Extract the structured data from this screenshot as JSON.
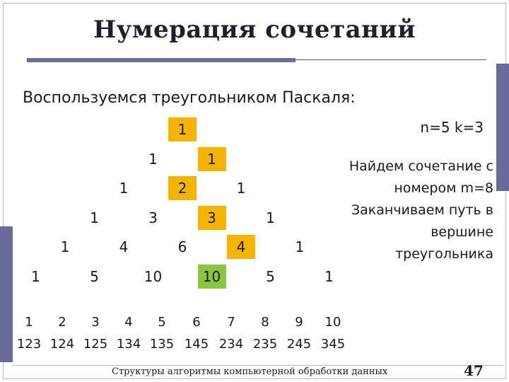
{
  "slide": {
    "title": "Нумерация сочетаний",
    "intro": "Воспользуемся треугольником Паскаля:",
    "params": "n=5 k=3",
    "note_lines": [
      "Найдем сочетание с",
      "номером m=8",
      "Заканчиваем путь в",
      "вершине",
      "треугольника"
    ],
    "footer": "Структуры алгоритмы компьютерной обработки данных",
    "page_number": "47"
  },
  "triangle": {
    "rows": [
      [
        "1"
      ],
      [
        "1",
        "1"
      ],
      [
        "1",
        "2",
        "1"
      ],
      [
        "1",
        "3",
        "3",
        "1"
      ],
      [
        "1",
        "4",
        "6",
        "4",
        "1"
      ],
      [
        "1",
        "5",
        "10",
        "10",
        "5",
        "1"
      ]
    ],
    "highlight": {
      "orange": [
        [
          0,
          0
        ],
        [
          1,
          1
        ],
        [
          2,
          1
        ],
        [
          3,
          2
        ],
        [
          4,
          3
        ]
      ],
      "green": [
        [
          5,
          3
        ]
      ]
    },
    "colors": {
      "orange": "#f5b400",
      "green": "#8cc63f"
    }
  },
  "numbering": {
    "indices": [
      "1",
      "2",
      "3",
      "4",
      "5",
      "6",
      "7",
      "8",
      "9",
      "10"
    ],
    "combinations": [
      "123",
      "124",
      "125",
      "134",
      "135",
      "145",
      "234",
      "235",
      "245",
      "345"
    ]
  }
}
